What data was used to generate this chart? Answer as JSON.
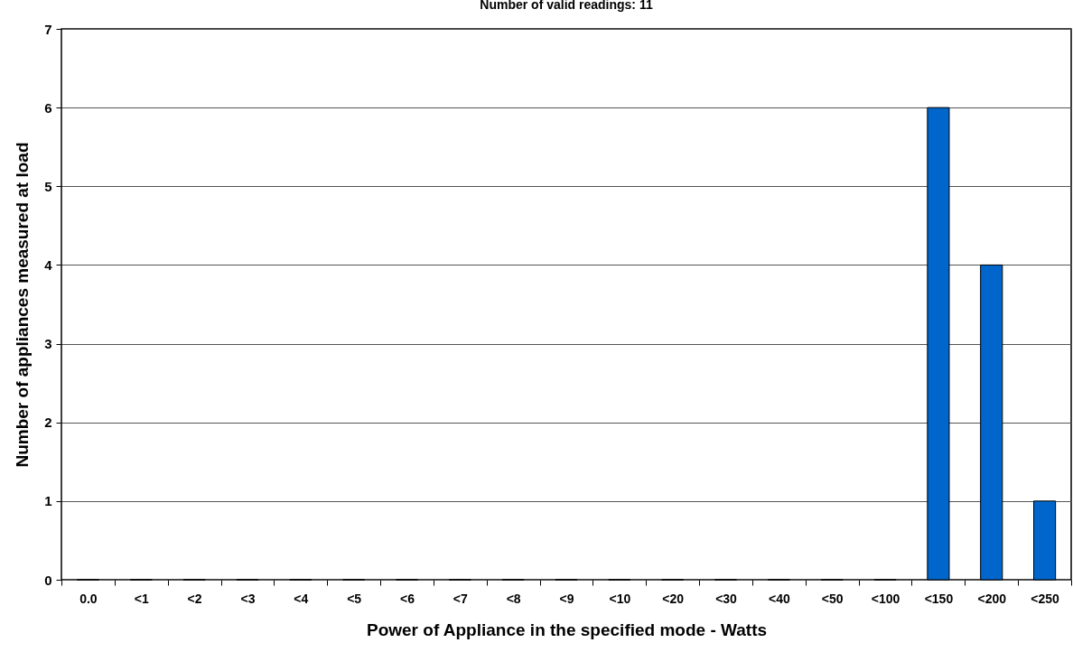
{
  "chart_data": {
    "type": "bar",
    "title": "Number of valid readings: 11",
    "xlabel": "Power of Appliance in the specified mode - Watts",
    "ylabel": "Number of appliances measured at load",
    "categories": [
      "0.0",
      "<1",
      "<2",
      "<3",
      "<4",
      "<5",
      "<6",
      "<7",
      "<8",
      "<9",
      "<10",
      "<20",
      "<30",
      "<40",
      "<50",
      "<100",
      "<150",
      "<200",
      "<250"
    ],
    "values": [
      0,
      0,
      0,
      0,
      0,
      0,
      0,
      0,
      0,
      0,
      0,
      0,
      0,
      0,
      0,
      0,
      6,
      4,
      1
    ],
    "color": "#0066cc",
    "ylim": [
      0,
      7
    ],
    "yticks": [
      0,
      1,
      2,
      3,
      4,
      5,
      6,
      7
    ],
    "grid": "y"
  }
}
